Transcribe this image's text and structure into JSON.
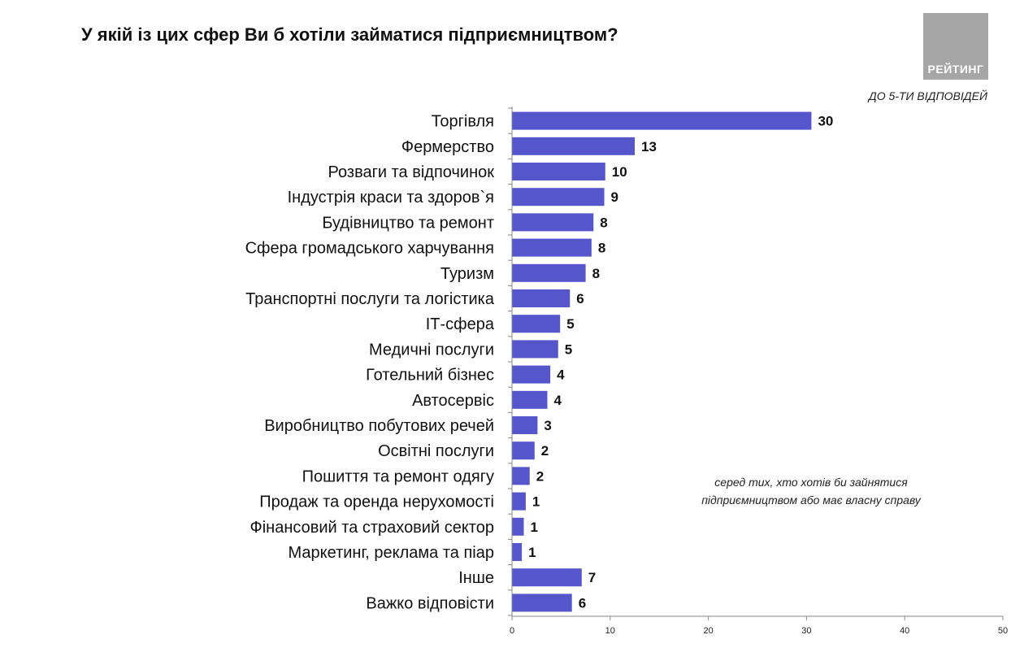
{
  "title": "У якій із цих сфер Ви б хотіли займатися підприємництвом?",
  "subtitle": "ДО 5-ТИ ВІДПОВІДЕЙ",
  "note": "серед тих, хто хотів би зайнятися підприємництвом або має власну справу",
  "logo": {
    "text": "РЕЙТИНГ",
    "color": "#a6a6a6"
  },
  "chart_data": {
    "type": "bar",
    "orientation": "horizontal",
    "title": "У якій із цих сфер Ви б хотіли займатися підприємництвом?",
    "subtitle": "ДО 5-ТИ ВІДПОВІДЕЙ",
    "xlabel": "",
    "ylabel": "",
    "xlim": [
      0,
      50
    ],
    "xticks": [
      0,
      10,
      20,
      30,
      40,
      50
    ],
    "grid": false,
    "bar_color": "#5555cc",
    "categories": [
      "Торгівля",
      "Фермерство",
      "Розваги та відпочинок",
      "Індустрія краси та здоров`я",
      "Будівництво та ремонт",
      "Сфера громадського харчування",
      "Туризм",
      "Транспортні послуги та логістика",
      "ІТ-сфера",
      "Медичні послуги",
      "Готельний бізнес",
      "Автосервіс",
      "Виробництво побутових речей",
      "Освітні послуги",
      "Пошиття та ремонт одягу",
      "Продаж та оренда нерухомості",
      "Фінансовий та страховий сектор",
      "Маркетинг, реклама та піар",
      "Інше",
      "Важко відповісти"
    ],
    "values": [
      30.5,
      12.5,
      9.5,
      9.4,
      8.3,
      8.1,
      7.5,
      5.9,
      4.9,
      4.7,
      3.9,
      3.6,
      2.6,
      2.3,
      1.8,
      1.4,
      1.2,
      1.0,
      7.1,
      6.1
    ],
    "value_labels": [
      "30",
      "13",
      "10",
      "9",
      "8",
      "8",
      "8",
      "6",
      "5",
      "5",
      "4",
      "4",
      "3",
      "2",
      "2",
      "1",
      "1",
      "1",
      "7",
      "6"
    ]
  }
}
